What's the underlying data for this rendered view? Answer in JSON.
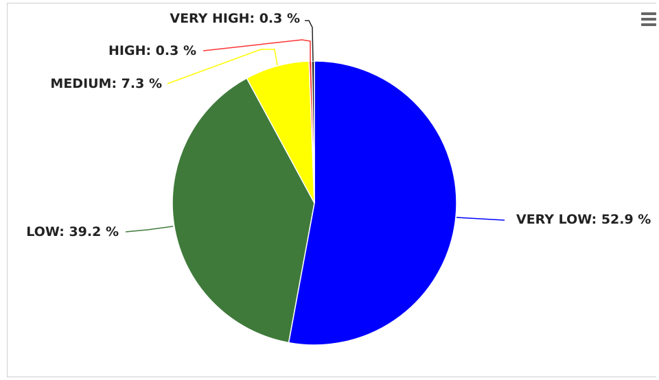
{
  "menu": {
    "icon": "hamburger-menu-icon"
  },
  "chart_data": {
    "type": "pie",
    "title": "",
    "slices": [
      {
        "name": "VERY LOW",
        "value": 52.9,
        "label": "VERY LOW: 52.9 %",
        "color": "#0000ff"
      },
      {
        "name": "LOW",
        "value": 39.2,
        "label": "LOW: 39.2 %",
        "color": "#3f7a3a"
      },
      {
        "name": "MEDIUM",
        "value": 7.3,
        "label": "MEDIUM: 7.3 %",
        "color": "#ffff00"
      },
      {
        "name": "HIGH",
        "value": 0.3,
        "label": "HIGH: 0.3 %",
        "color": "#ff3333"
      },
      {
        "name": "VERY HIGH",
        "value": 0.3,
        "label": "VERY HIGH: 0.3 %",
        "color": "#222222"
      }
    ],
    "start_angle_deg": 0,
    "direction": "clockwise",
    "legend": "none",
    "data_labels": "outside-with-connectors"
  }
}
